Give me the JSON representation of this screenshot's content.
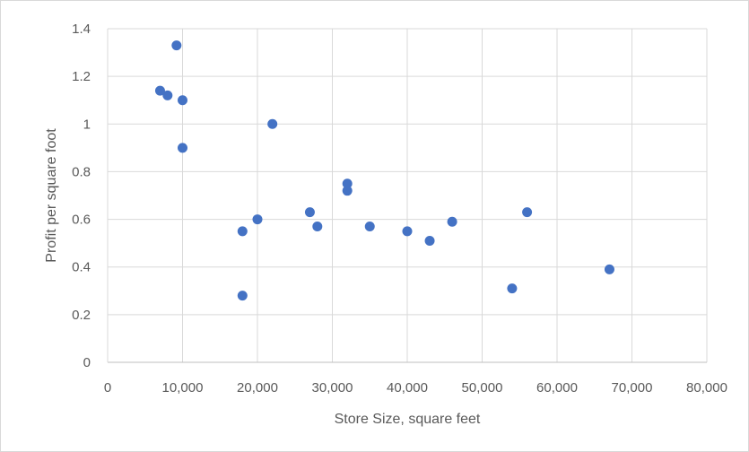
{
  "chart_data": {
    "type": "scatter",
    "title": "",
    "xlabel": "Store Size, square feet",
    "ylabel": "Profit per square foot",
    "xlim": [
      0,
      80000
    ],
    "ylim": [
      0,
      1.4
    ],
    "x_ticks": [
      0,
      10000,
      20000,
      30000,
      40000,
      50000,
      60000,
      70000,
      80000
    ],
    "x_tick_labels": [
      "0",
      "10,000",
      "20,000",
      "30,000",
      "40,000",
      "50,000",
      "60,000",
      "70,000",
      "80,000"
    ],
    "y_ticks": [
      0,
      0.2,
      0.4,
      0.6,
      0.8,
      1.0,
      1.2,
      1.4
    ],
    "y_tick_labels": [
      "0",
      "0.2",
      "0.4",
      "0.6",
      "0.8",
      "1",
      "1.2",
      "1.4"
    ],
    "grid": true,
    "legend": "none",
    "marker_color": "#4472c4",
    "series": [
      {
        "points": [
          {
            "x": 7000,
            "y": 1.14
          },
          {
            "x": 8000,
            "y": 1.12
          },
          {
            "x": 9200,
            "y": 1.33
          },
          {
            "x": 10000,
            "y": 1.1
          },
          {
            "x": 10000,
            "y": 0.9
          },
          {
            "x": 18000,
            "y": 0.55
          },
          {
            "x": 18000,
            "y": 0.28
          },
          {
            "x": 20000,
            "y": 0.6
          },
          {
            "x": 22000,
            "y": 1.0
          },
          {
            "x": 27000,
            "y": 0.63
          },
          {
            "x": 28000,
            "y": 0.57
          },
          {
            "x": 32000,
            "y": 0.75
          },
          {
            "x": 32000,
            "y": 0.72
          },
          {
            "x": 35000,
            "y": 0.57
          },
          {
            "x": 40000,
            "y": 0.55
          },
          {
            "x": 43000,
            "y": 0.51
          },
          {
            "x": 46000,
            "y": 0.59
          },
          {
            "x": 54000,
            "y": 0.31
          },
          {
            "x": 56000,
            "y": 0.63
          },
          {
            "x": 67000,
            "y": 0.39
          }
        ]
      }
    ]
  }
}
